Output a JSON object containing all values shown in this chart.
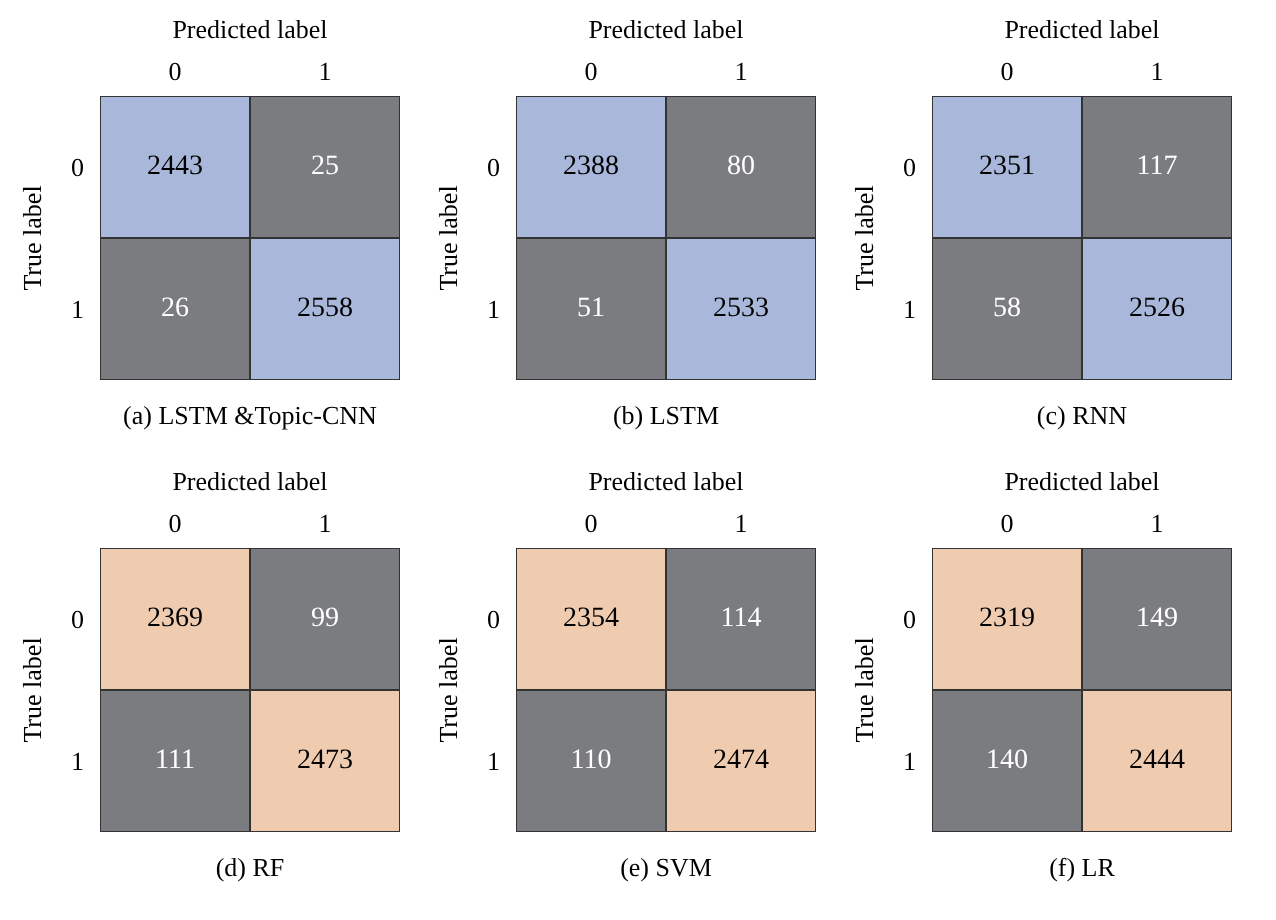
{
  "chart_data": [
    {
      "type": "heatmap",
      "title": "(a) LSTM &Topic-CNN",
      "data_labels": true,
      "xlabel": "Predicted label",
      "ylabel": "True label",
      "categories": [
        "0",
        "1"
      ],
      "y_categories": [
        "0",
        "1"
      ],
      "cells": [
        [
          2443,
          25
        ],
        [
          26,
          2558
        ]
      ],
      "colors": [
        [
          "#a9b8da",
          "#7b7c80"
        ],
        [
          "#7b7c80",
          "#a9b8da"
        ]
      ]
    },
    {
      "type": "heatmap",
      "title": "(b) LSTM",
      "data_labels": true,
      "xlabel": "Predicted label",
      "ylabel": "True label",
      "categories": [
        "0",
        "1"
      ],
      "y_categories": [
        "0",
        "1"
      ],
      "cells": [
        [
          2388,
          80
        ],
        [
          51,
          2533
        ]
      ],
      "colors": [
        [
          "#a9b8da",
          "#7b7c80"
        ],
        [
          "#7b7c80",
          "#a9b8da"
        ]
      ]
    },
    {
      "type": "heatmap",
      "title": "(c) RNN",
      "data_labels": true,
      "xlabel": "Predicted label",
      "ylabel": "True label",
      "categories": [
        "0",
        "1"
      ],
      "y_categories": [
        "0",
        "1"
      ],
      "cells": [
        [
          2351,
          117
        ],
        [
          58,
          2526
        ]
      ],
      "colors": [
        [
          "#a9b8da",
          "#7b7c80"
        ],
        [
          "#7b7c80",
          "#a9b8da"
        ]
      ]
    },
    {
      "type": "heatmap",
      "title": "(d) RF",
      "data_labels": true,
      "xlabel": "Predicted label",
      "ylabel": "True label",
      "categories": [
        "0",
        "1"
      ],
      "y_categories": [
        "0",
        "1"
      ],
      "cells": [
        [
          2369,
          99
        ],
        [
          111,
          2473
        ]
      ],
      "colors": [
        [
          "#efcbb0",
          "#7b7c80"
        ],
        [
          "#7b7c80",
          "#efcbb0"
        ]
      ]
    },
    {
      "type": "heatmap",
      "title": "(e) SVM",
      "data_labels": true,
      "xlabel": "Predicted label",
      "ylabel": "True label",
      "categories": [
        "0",
        "1"
      ],
      "y_categories": [
        "0",
        "1"
      ],
      "cells": [
        [
          2354,
          114
        ],
        [
          110,
          2474
        ]
      ],
      "colors": [
        [
          "#efcbb0",
          "#7b7c80"
        ],
        [
          "#7b7c80",
          "#efcbb0"
        ]
      ]
    },
    {
      "type": "heatmap",
      "title": "(f) LR",
      "data_labels": true,
      "xlabel": "Predicted label",
      "ylabel": "True label",
      "categories": [
        "0",
        "1"
      ],
      "y_categories": [
        "0",
        "1"
      ],
      "cells": [
        [
          2319,
          149
        ],
        [
          140,
          2444
        ]
      ],
      "colors": [
        [
          "#efcbb0",
          "#7b7c80"
        ],
        [
          "#7b7c80",
          "#efcbb0"
        ]
      ]
    }
  ]
}
